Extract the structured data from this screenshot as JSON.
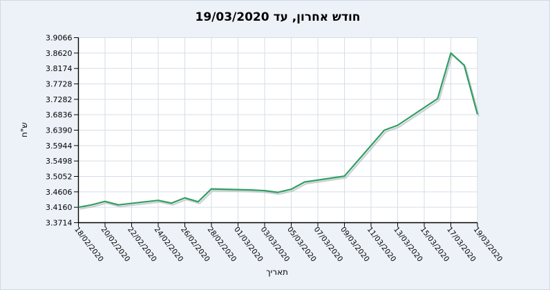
{
  "panel": {
    "background": "#edf2f8",
    "plot_background": "#ffffff",
    "gridline_color": "#d6dde6",
    "axis_color": "#000000"
  },
  "chart_data": {
    "type": "line",
    "title": "חודש אחרון, עד 19/03/2020",
    "xlabel": "תאריך",
    "ylabel": "ש\"ח",
    "grid": true,
    "legend_position": "none",
    "ylim": [
      3.3714,
      3.9066
    ],
    "y_tick_labels": [
      "3.3714",
      "3.4160",
      "3.4606",
      "3.5052",
      "3.5498",
      "3.5944",
      "3.6390",
      "3.6836",
      "3.7282",
      "3.7728",
      "3.8174",
      "3.8620",
      "3.9066"
    ],
    "x_tick_labels": [
      "18/02/2020",
      "20/02/2020",
      "22/02/2020",
      "24/02/2020",
      "26/02/2020",
      "28/02/2020",
      "01/03/2020",
      "03/03/2020",
      "05/03/2020",
      "07/03/2020",
      "09/03/2020",
      "11/03/2020",
      "13/03/2020",
      "15/03/2020",
      "17/03/2020",
      "19/03/2020"
    ],
    "series": [
      {
        "color": "#2f9e5f",
        "shadow_color": "#bdc3ca",
        "points": [
          {
            "date": "18/02/2020",
            "value": 3.416
          },
          {
            "date": "19/02/2020",
            "value": 3.423
          },
          {
            "date": "20/02/2020",
            "value": 3.433
          },
          {
            "date": "21/02/2020",
            "value": 3.423
          },
          {
            "date": "24/02/2020",
            "value": 3.436
          },
          {
            "date": "25/02/2020",
            "value": 3.428
          },
          {
            "date": "26/02/2020",
            "value": 3.443
          },
          {
            "date": "27/02/2020",
            "value": 3.432
          },
          {
            "date": "28/02/2020",
            "value": 3.469
          },
          {
            "date": "02/03/2020",
            "value": 3.466
          },
          {
            "date": "03/03/2020",
            "value": 3.464
          },
          {
            "date": "04/03/2020",
            "value": 3.459
          },
          {
            "date": "05/03/2020",
            "value": 3.468
          },
          {
            "date": "06/03/2020",
            "value": 3.489
          },
          {
            "date": "09/03/2020",
            "value": 3.506
          },
          {
            "date": "12/03/2020",
            "value": 3.639
          },
          {
            "date": "13/03/2020",
            "value": 3.653
          },
          {
            "date": "16/03/2020",
            "value": 3.73
          },
          {
            "date": "17/03/2020",
            "value": 3.862
          },
          {
            "date": "18/03/2020",
            "value": 3.827
          },
          {
            "date": "19/03/2020",
            "value": 3.685
          }
        ]
      }
    ]
  }
}
